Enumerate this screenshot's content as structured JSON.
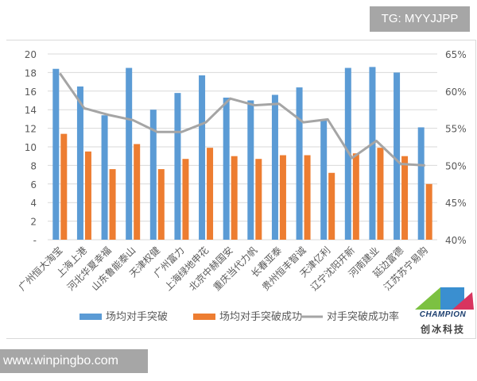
{
  "watermarks": {
    "top": "TG: MYYJJPP",
    "bottom": "www.winpingbo.com"
  },
  "logo": {
    "name": "CHAMPION",
    "cn": "创冰科技"
  },
  "colors": {
    "blue": "#5b9bd5",
    "orange": "#ed7d31",
    "line": "#a5a5a5",
    "grid": "#d9d9d9",
    "text": "#595959"
  },
  "chart_data": {
    "type": "bar",
    "title": "",
    "categories": [
      "广州恒大淘宝",
      "上海上港",
      "河北华夏幸福",
      "山东鲁能泰山",
      "天津权健",
      "广州富力",
      "上海绿地申花",
      "北京中赫国安",
      "重庆当代力帆",
      "长春亚泰",
      "贵州恒丰智诚",
      "天津亿利",
      "辽宁沈阳开新",
      "河南建业",
      "延边富德",
      "江苏苏宁易购"
    ],
    "series": [
      {
        "name": "场均对手突破",
        "type": "bar",
        "axis": "left",
        "values": [
          18.4,
          16.5,
          13.4,
          18.5,
          14.0,
          15.8,
          17.7,
          15.3,
          15.0,
          15.6,
          16.4,
          12.9,
          18.5,
          18.6,
          18.0,
          12.1
        ]
      },
      {
        "name": "场均对手突破成功",
        "type": "bar",
        "axis": "left",
        "values": [
          11.4,
          9.5,
          7.6,
          10.3,
          7.6,
          8.7,
          9.9,
          9.0,
          8.7,
          9.1,
          9.1,
          7.2,
          9.3,
          9.9,
          9.0,
          6.0
        ]
      },
      {
        "name": "对手突破成功率",
        "type": "line",
        "axis": "right",
        "values": [
          62.4,
          57.7,
          56.8,
          56.1,
          54.5,
          54.5,
          55.8,
          59.0,
          58.1,
          58.3,
          55.8,
          56.2,
          51.0,
          53.3,
          50.2,
          50.0
        ]
      }
    ],
    "y_left": {
      "range": [
        0,
        20
      ],
      "ticks": [
        "-",
        "2",
        "4",
        "6",
        "8",
        "10",
        "12",
        "14",
        "16",
        "18",
        "20"
      ]
    },
    "y_right": {
      "range": [
        40,
        65
      ],
      "ticks": [
        "40%",
        "45%",
        "50%",
        "55%",
        "60%",
        "65%"
      ]
    },
    "grid": true,
    "legend": "bottom"
  }
}
